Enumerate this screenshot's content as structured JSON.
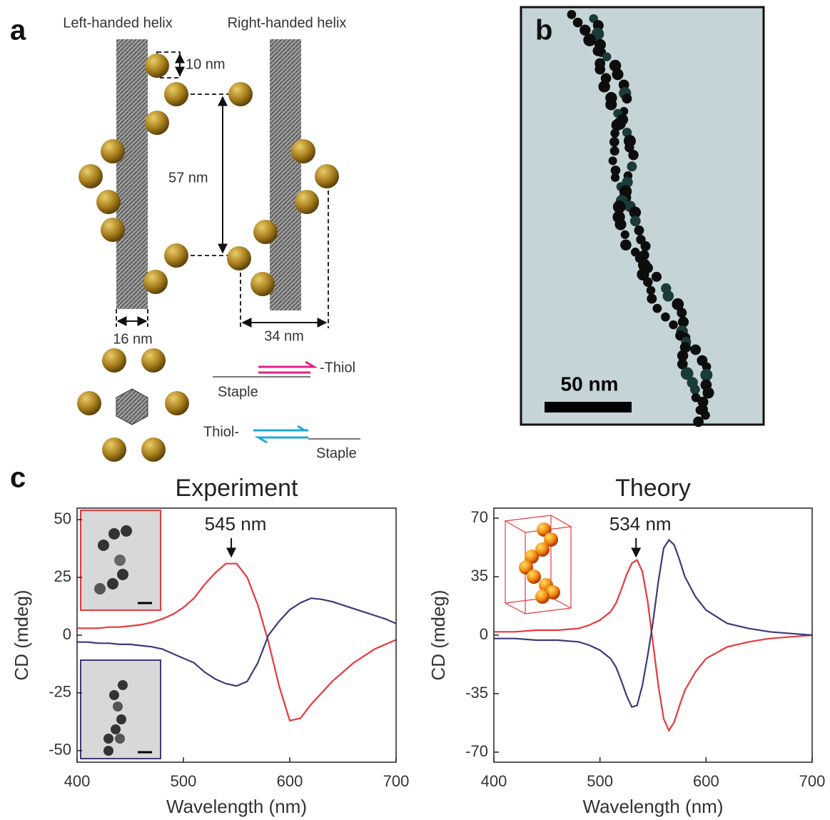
{
  "panel_a": {
    "label": "a",
    "left_title": "Left-handed helix",
    "right_title": "Right-handed helix",
    "pitch_small": "10 nm",
    "pitch": "57 nm",
    "rod_width": "16 nm",
    "helix_width": "34 nm",
    "top_strand_thiol": "-Thiol",
    "top_strand_staple": "Staple",
    "bottom_strand_thiol": "Thiol-",
    "bottom_strand_staple": "Staple"
  },
  "panel_b": {
    "label": "b",
    "scale_bar": "50 nm"
  },
  "panel_c": {
    "label": "c"
  },
  "chart_data": [
    {
      "type": "line",
      "title": "Experiment",
      "x_label": "Wavelength (nm)",
      "y_label": "CD (mdeg)",
      "annotation": {
        "text": "545 nm",
        "x": 545
      },
      "x": [
        400,
        410,
        420,
        430,
        440,
        450,
        460,
        470,
        480,
        490,
        500,
        510,
        520,
        530,
        540,
        550,
        560,
        570,
        580,
        590,
        600,
        610,
        620,
        630,
        640,
        650,
        660,
        670,
        680,
        690,
        700
      ],
      "series": [
        {
          "color": "#e8383d",
          "values": [
            3,
            3,
            3,
            3.5,
            3.5,
            4,
            4.5,
            5.5,
            7,
            9,
            12,
            16,
            22,
            27,
            31,
            31,
            25,
            13,
            -3,
            -22,
            -37,
            -36,
            -30,
            -25,
            -20,
            -16,
            -12,
            -9,
            -6,
            -4,
            -2
          ]
        },
        {
          "color": "#3b3b7a",
          "values": [
            -3,
            -3,
            -3.5,
            -3.5,
            -4,
            -4,
            -4.5,
            -5,
            -6,
            -8,
            -10,
            -12,
            -16,
            -19,
            -21,
            -22,
            -20,
            -12,
            0,
            6,
            11,
            14,
            16,
            15.5,
            14.5,
            13,
            11.5,
            10,
            8.5,
            7,
            5
          ]
        }
      ],
      "xlim": [
        400,
        700
      ],
      "xticks": [
        400,
        500,
        600,
        700
      ],
      "ylim": [
        -55,
        55
      ],
      "yticks": [
        -50,
        -25,
        0,
        25,
        50
      ]
    },
    {
      "type": "line",
      "title": "Theory",
      "x_label": "Wavelength (nm)",
      "y_label": "CD (mdeg)",
      "annotation": {
        "text": "534 nm",
        "x": 534
      },
      "x": [
        400,
        420,
        440,
        460,
        480,
        490,
        500,
        510,
        515,
        520,
        525,
        530,
        535,
        540,
        545,
        550,
        555,
        560,
        565,
        570,
        575,
        580,
        590,
        600,
        620,
        640,
        660,
        680,
        700
      ],
      "series": [
        {
          "color": "#e8383d",
          "values": [
            2,
            2,
            3,
            3,
            4,
            6,
            9,
            14,
            19,
            27,
            36,
            43,
            45,
            38,
            20,
            -5,
            -30,
            -50,
            -57,
            -52,
            -42,
            -33,
            -22,
            -14,
            -7,
            -4,
            -2,
            -1,
            0
          ]
        },
        {
          "color": "#3b3b7a",
          "values": [
            -2,
            -2,
            -3,
            -3,
            -4,
            -6,
            -9,
            -14,
            -19,
            -27,
            -36,
            -43,
            -42,
            -30,
            -12,
            8,
            32,
            52,
            57,
            54,
            45,
            35,
            23,
            15,
            7,
            4,
            2,
            1,
            0
          ]
        }
      ],
      "xlim": [
        400,
        700
      ],
      "xticks": [
        400,
        500,
        600,
        700
      ],
      "ylim": [
        -76,
        76
      ],
      "yticks": [
        -70,
        -35,
        0,
        35,
        70
      ]
    }
  ]
}
